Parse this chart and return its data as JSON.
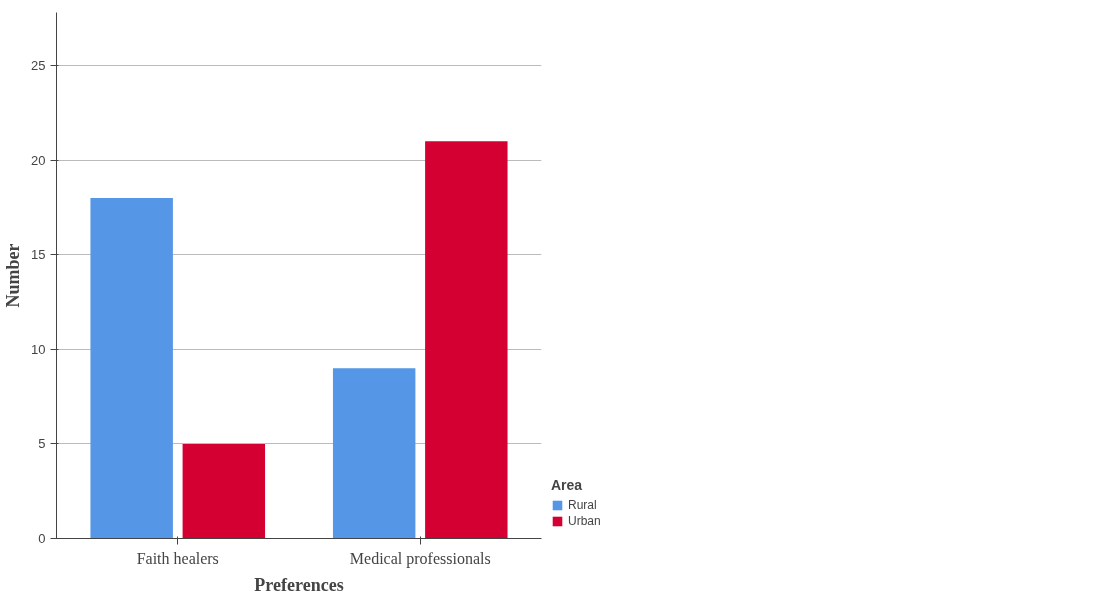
{
  "chart_data": {
    "type": "bar",
    "xlabel": "Preferences",
    "ylabel": "Number",
    "legend_title": "Area",
    "categories": [
      "Faith healers",
      "Medical professionals"
    ],
    "series": [
      {
        "name": "Rural",
        "color": "#5596e6",
        "values": [
          18,
          9
        ]
      },
      {
        "name": "Urban",
        "color": "#d50032",
        "values": [
          5,
          21
        ]
      }
    ],
    "ylim": [
      0,
      27.8
    ],
    "yticks": [
      0,
      5,
      10,
      15,
      20,
      25
    ],
    "grid": "y",
    "legend": "right"
  }
}
